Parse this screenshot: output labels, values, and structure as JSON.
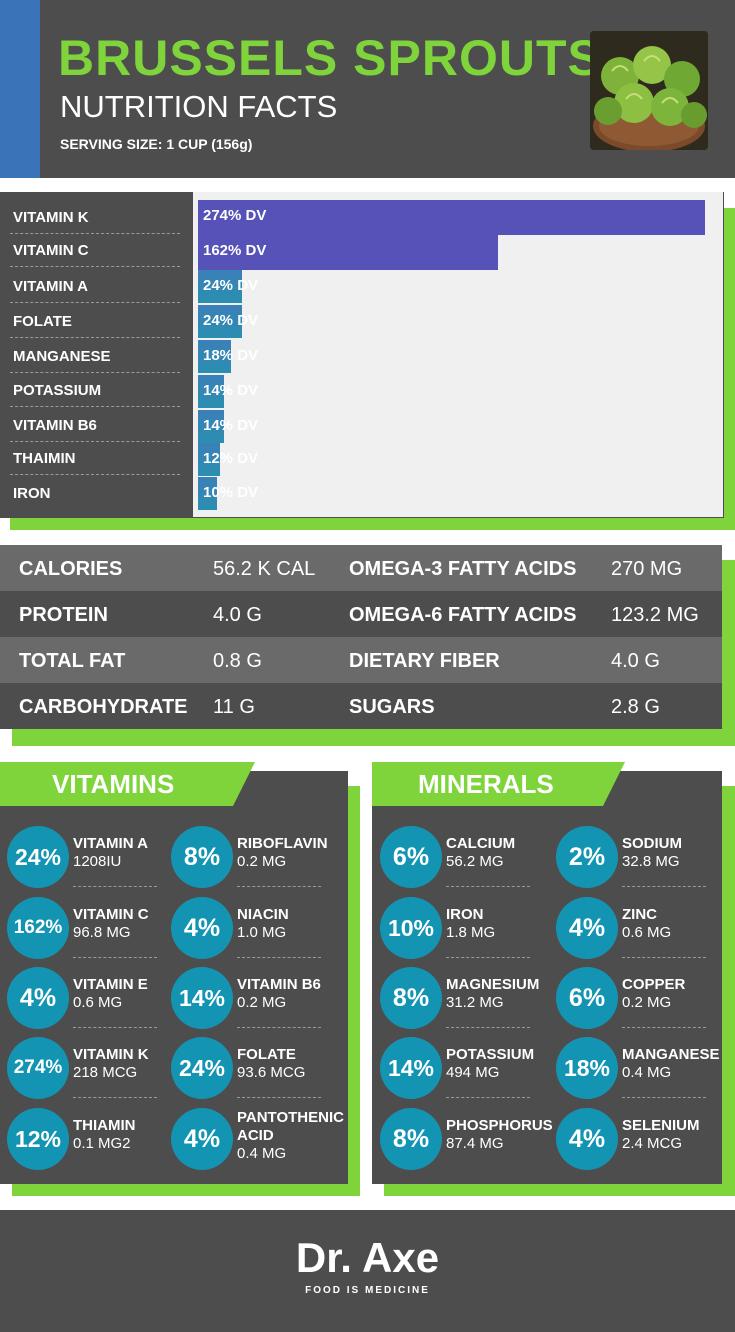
{
  "header": {
    "title": "BRUSSELS SPROUTS",
    "subtitle": "NUTRITION FACTS",
    "serving": "SERVING SIZE: 1 CUP (156g)",
    "photo_icon": "brussels-sprouts-photo"
  },
  "colors": {
    "green": "#7ed43a",
    "dark_gray": "#4d4d4d",
    "teal": "#1494b3",
    "bar_purple": "#5652b8",
    "bar_teal": "#2a8fb0"
  },
  "chart_data": {
    "type": "bar",
    "orientation": "horizontal",
    "categories": [
      "VITAMIN K",
      "VITAMIN C",
      "VITAMIN A",
      "FOLATE",
      "MANGANESE",
      "POTASSIUM",
      "VITAMIN B6",
      "THAIMIN",
      "IRON"
    ],
    "values": [
      274,
      162,
      24,
      24,
      18,
      14,
      14,
      12,
      10
    ],
    "labels": [
      "274% DV",
      "162% DV",
      "24% DV",
      "24% DV",
      "18% DV",
      "14% DV",
      "14% DV",
      "12% DV",
      "10% DV"
    ],
    "unit": "% DV",
    "xlim": [
      0,
      280
    ]
  },
  "macros": [
    {
      "name1": "CALORIES",
      "value1": "56.2 K CAL",
      "name2": "OMEGA-3 FATTY ACIDS",
      "value2": "270 MG"
    },
    {
      "name1": "PROTEIN",
      "value1": "4.0 G",
      "name2": "OMEGA-6 FATTY ACIDS",
      "value2": "123.2 MG"
    },
    {
      "name1": "TOTAL FAT",
      "value1": "0.8 G",
      "name2": "DIETARY FIBER",
      "value2": "4.0 G"
    },
    {
      "name1": "CARBOHYDRATE",
      "value1": "11 G",
      "name2": "SUGARS",
      "value2": "2.8 G"
    }
  ],
  "vitamins": {
    "title": "VITAMINS",
    "items": [
      {
        "pct": "24%",
        "name": "VITAMIN A",
        "value": "1208IU"
      },
      {
        "pct": "8%",
        "name": "RIBOFLAVIN",
        "value": "0.2 MG"
      },
      {
        "pct": "162%",
        "name": "VITAMIN C",
        "value": "96.8 MG"
      },
      {
        "pct": "4%",
        "name": "NIACIN",
        "value": "1.0 MG"
      },
      {
        "pct": "4%",
        "name": "VITAMIN E",
        "value": "0.6 MG"
      },
      {
        "pct": "14%",
        "name": "VITAMIN B6",
        "value": "0.2 MG"
      },
      {
        "pct": "274%",
        "name": "VITAMIN K",
        "value": "218 MCG"
      },
      {
        "pct": "24%",
        "name": "FOLATE",
        "value": "93.6 MCG"
      },
      {
        "pct": "12%",
        "name": "THIAMIN",
        "value": "0.1 MG2"
      },
      {
        "pct": "4%",
        "name": "PANTOTHENIC",
        "name2": "ACID",
        "value": "0.4 MG"
      }
    ]
  },
  "minerals": {
    "title": "MINERALS",
    "items": [
      {
        "pct": "6%",
        "name": "CALCIUM",
        "value": "56.2 MG"
      },
      {
        "pct": "2%",
        "name": "SODIUM",
        "value": "32.8 MG"
      },
      {
        "pct": "10%",
        "name": "IRON",
        "value": "1.8 MG"
      },
      {
        "pct": "4%",
        "name": "ZINC",
        "value": "0.6 MG"
      },
      {
        "pct": "8%",
        "name": "MAGNESIUM",
        "value": "31.2 MG"
      },
      {
        "pct": "6%",
        "name": "COPPER",
        "value": "0.2 MG"
      },
      {
        "pct": "14%",
        "name": "POTASSIUM",
        "value": "494 MG"
      },
      {
        "pct": "18%",
        "name": "MANGANESE",
        "value": "0.4 MG"
      },
      {
        "pct": "8%",
        "name": "PHOSPHORUS",
        "value": "87.4 MG"
      },
      {
        "pct": "4%",
        "name": "SELENIUM",
        "value": "2.4 MCG"
      }
    ]
  },
  "footer": {
    "brand": "Dr. Axe",
    "tagline": "FOOD IS MEDICINE"
  }
}
